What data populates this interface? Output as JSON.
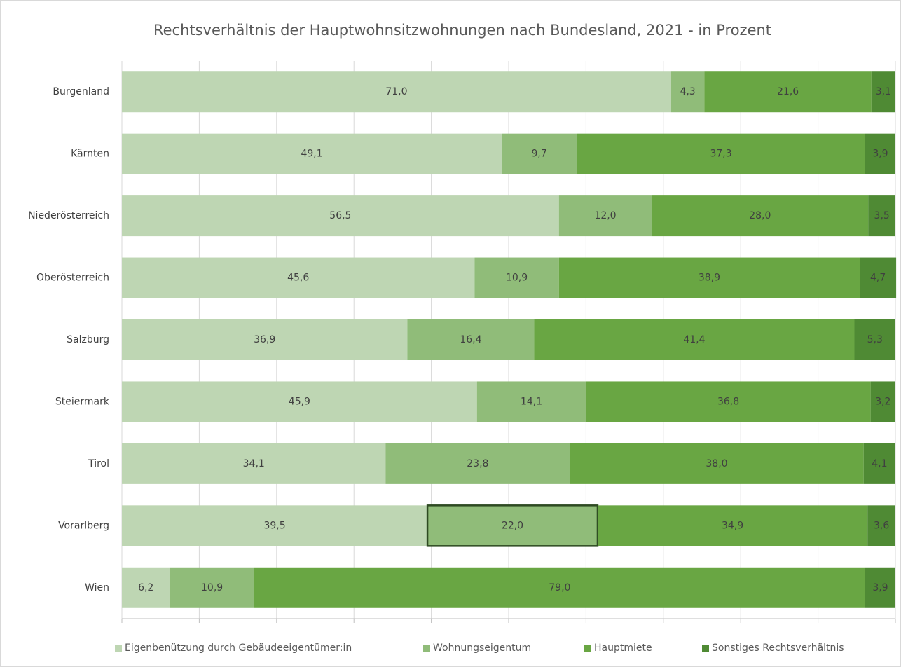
{
  "chart_data": {
    "type": "stacked_bar_horizontal",
    "title": "Rechtsverhältnis der Hauptwohnsitzwohnungen nach Bundesland, 2021 - in Prozent",
    "categories": [
      "Burgenland",
      "Kärnten",
      "Niederösterreich",
      "Oberösterreich",
      "Salzburg",
      "Steiermark",
      "Tirol",
      "Vorarlberg",
      "Wien"
    ],
    "series": [
      {
        "name": "Eigenbenützung durch Gebäudeeigentümer:in",
        "color": "#bed6b3",
        "values": [
          71.0,
          49.1,
          56.5,
          45.6,
          36.9,
          45.9,
          34.1,
          39.5,
          6.2
        ],
        "value_labels": [
          "71,0",
          "49,1",
          "56,5",
          "45,6",
          "36,9",
          "45,9",
          "34,1",
          "39,5",
          "6,2"
        ]
      },
      {
        "name": "Wohnungseigentum",
        "color": "#90bc79",
        "values": [
          4.3,
          9.7,
          12.0,
          10.9,
          16.4,
          14.1,
          23.8,
          22.0,
          10.9
        ],
        "value_labels": [
          "4,3",
          "9,7",
          "12,0",
          "10,9",
          "16,4",
          "14,1",
          "23,8",
          "22,0",
          "10,9"
        ]
      },
      {
        "name": "Hauptmiete",
        "color": "#69a643",
        "values": [
          21.6,
          37.3,
          28.0,
          38.9,
          41.4,
          36.8,
          38.0,
          34.9,
          79.0
        ],
        "value_labels": [
          "21,6",
          "37,3",
          "28,0",
          "38,9",
          "41,4",
          "36,8",
          "38,0",
          "34,9",
          "79,0"
        ]
      },
      {
        "name": "Sonstiges Rechtsverhältnis",
        "color": "#4f8a34",
        "values": [
          3.1,
          3.9,
          3.5,
          4.7,
          5.3,
          3.2,
          4.1,
          3.6,
          3.9
        ],
        "value_labels": [
          "3,1",
          "3,9",
          "3,5",
          "4,7",
          "5,3",
          "3,2",
          "4,1",
          "3,6",
          "3,9"
        ]
      }
    ],
    "xlim": [
      0,
      100
    ],
    "xticks": [
      0,
      10,
      20,
      30,
      40,
      50,
      60,
      70,
      80,
      90,
      100
    ],
    "grid": true,
    "legend": "bottom",
    "selected_point": [
      1,
      7
    ]
  }
}
